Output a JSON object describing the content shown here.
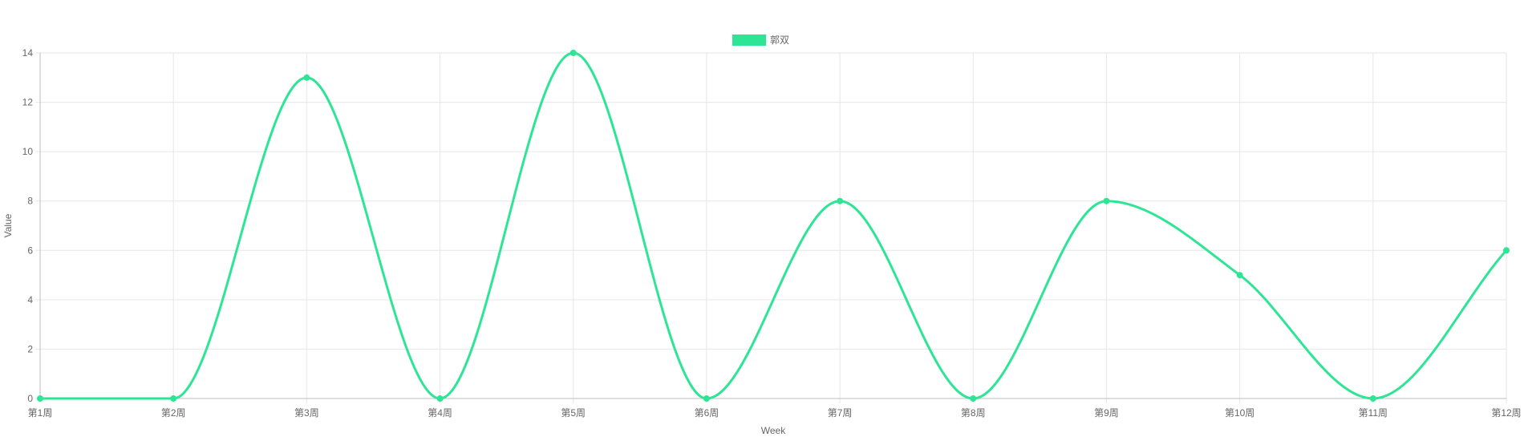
{
  "chart_data": {
    "type": "line",
    "categories": [
      "第1周",
      "第2周",
      "第3周",
      "第4周",
      "第5周",
      "第6周",
      "第7周",
      "第8周",
      "第9周",
      "第10周",
      "第11周",
      "第12周"
    ],
    "series": [
      {
        "name": "郭双",
        "values": [
          0,
          0,
          13,
          0,
          14,
          0,
          8,
          0,
          8,
          5,
          0,
          6
        ],
        "color": "#2ee595"
      }
    ],
    "xlabel": "Week",
    "ylabel": "Value",
    "ylim": [
      0,
      14
    ],
    "yticks": [
      0,
      2,
      4,
      6,
      8,
      10,
      12,
      14
    ],
    "grid": true,
    "legend_position": "top-center",
    "colors": {
      "grid": "#e6e6e6",
      "axis": "#bdbdbd",
      "text": "#666666"
    }
  }
}
